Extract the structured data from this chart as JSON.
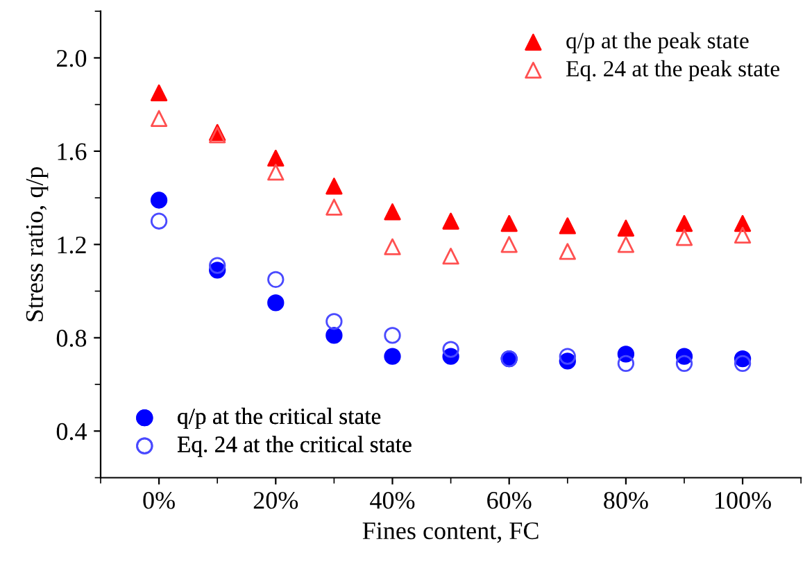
{
  "chart_data": {
    "type": "scatter",
    "xlabel": "Fines content, FC",
    "ylabel": "Stress ratio, q/p",
    "x": [
      0,
      10,
      20,
      30,
      40,
      50,
      60,
      70,
      80,
      90,
      100
    ],
    "xlim": [
      -10,
      110
    ],
    "xticks": [
      {
        "value": 0,
        "label": "0%"
      },
      {
        "value": 20,
        "label": "20%"
      },
      {
        "value": 40,
        "label": "40%"
      },
      {
        "value": 60,
        "label": "60%"
      },
      {
        "value": 80,
        "label": "80%"
      },
      {
        "value": 100,
        "label": "100%"
      }
    ],
    "ylim": [
      0.2,
      2.2
    ],
    "yticks": [
      {
        "value": 0.4,
        "label": "0.4"
      },
      {
        "value": 0.8,
        "label": "0.8"
      },
      {
        "value": 1.2,
        "label": "1.2"
      },
      {
        "value": 1.6,
        "label": "1.6"
      },
      {
        "value": 2.0,
        "label": "2.0"
      }
    ],
    "grid": false,
    "legend": [
      "top right",
      "bottom left"
    ],
    "series": [
      {
        "name": "q/p at the peak state",
        "color": "#ff0000",
        "marker": "triangle",
        "values": [
          1.85,
          1.68,
          1.57,
          1.45,
          1.34,
          1.3,
          1.29,
          1.28,
          1.27,
          1.29,
          1.29
        ]
      },
      {
        "name": "Eq. 24 at the peak state",
        "color": "#ff5050",
        "marker": "triangle-open",
        "values": [
          1.74,
          1.67,
          1.51,
          1.36,
          1.19,
          1.15,
          1.2,
          1.17,
          1.2,
          1.23,
          1.24
        ]
      },
      {
        "name": "q/p at the critical state",
        "color": "#0000ff",
        "marker": "circle",
        "values": [
          1.39,
          1.09,
          0.95,
          0.81,
          0.72,
          0.72,
          0.71,
          0.7,
          0.73,
          0.72,
          0.71
        ]
      },
      {
        "name": "Eq. 24 at the critical state",
        "color": "#4a4aff",
        "marker": "circle-open",
        "values": [
          1.3,
          1.11,
          1.05,
          0.87,
          0.81,
          0.75,
          0.71,
          0.72,
          0.69,
          0.69,
          0.69
        ]
      }
    ]
  }
}
